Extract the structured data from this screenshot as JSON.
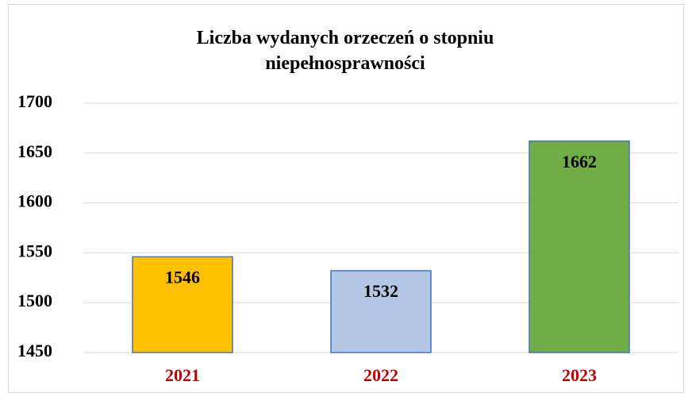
{
  "chart_data": {
    "type": "bar",
    "title": "Liczba wydanych orzeczeń o stopniu niepełnosprawności",
    "categories": [
      "2021",
      "2022",
      "2023"
    ],
    "values": [
      1546,
      1532,
      1662
    ],
    "colors": [
      "#FFC000",
      "#B4C7E7",
      "#70AD47"
    ],
    "ylim": [
      1450,
      1700
    ],
    "yticks": [
      1450,
      1500,
      1550,
      1600,
      1650,
      1700
    ],
    "grid": true
  }
}
